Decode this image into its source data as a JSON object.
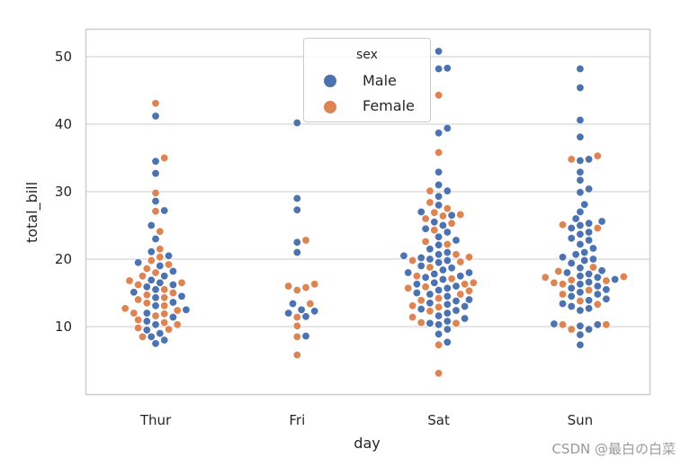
{
  "chart_data": {
    "type": "scatter",
    "subtype": "swarm",
    "categories": [
      "Thur",
      "Fri",
      "Sat",
      "Sun"
    ],
    "xlabel": "day",
    "ylabel": "total_bill",
    "ylim": [
      0,
      54
    ],
    "yticks": [
      10,
      20,
      30,
      40,
      50
    ],
    "grid": true,
    "legend": {
      "title": "sex",
      "placement": "top-center",
      "entries": [
        {
          "name": "Male",
          "color": "#4c72b0"
        },
        {
          "name": "Female",
          "color": "#dd8452"
        }
      ]
    },
    "series": [
      {
        "name": "Male",
        "color": "#4c72b0",
        "values": {
          "Thur": [
            41.2,
            34.5,
            32.7,
            28.6,
            27.2,
            25.0,
            23.0,
            21.1,
            20.5,
            19.5,
            19.0,
            18.2,
            17.5,
            16.9,
            16.5,
            16.2,
            15.9,
            15.5,
            15.1,
            14.5,
            14.3,
            13.6,
            13.1,
            12.5,
            12.0,
            11.4,
            10.8,
            10.3,
            9.5,
            9.0,
            8.5,
            8.0,
            7.5
          ],
          "Fri": [
            40.2,
            29.0,
            27.3,
            22.5,
            21.0,
            13.4,
            12.5,
            12.3,
            12.0,
            11.5,
            8.6
          ],
          "Sat": [
            50.8,
            48.3,
            48.2,
            39.4,
            38.7,
            32.9,
            31.0,
            30.1,
            29.3,
            28.0,
            27.0,
            26.5,
            25.5,
            25.0,
            24.5,
            24.0,
            23.3,
            22.8,
            22.1,
            21.5,
            21.0,
            20.7,
            20.5,
            20.2,
            20.0,
            19.8,
            19.5,
            19.0,
            18.7,
            18.4,
            18.0,
            18.0,
            17.8,
            17.5,
            17.3,
            17.0,
            16.5,
            16.3,
            16.0,
            15.7,
            15.4,
            15.0,
            14.8,
            14.5,
            14.0,
            13.8,
            13.5,
            13.3,
            13.0,
            12.6,
            12.4,
            12.0,
            11.6,
            11.2,
            10.8,
            10.5,
            10.3,
            9.6,
            8.9,
            7.7
          ],
          "Sun": [
            48.2,
            45.4,
            40.6,
            38.1,
            34.8,
            34.6,
            32.9,
            31.7,
            30.4,
            29.9,
            28.1,
            27.0,
            26.0,
            25.6,
            25.3,
            25.0,
            24.6,
            24.0,
            23.7,
            23.1,
            22.8,
            22.2,
            21.6,
            21.0,
            20.7,
            20.3,
            20.0,
            19.8,
            19.4,
            18.7,
            18.3,
            18.0,
            17.8,
            17.5,
            17.3,
            17.0,
            16.6,
            16.3,
            16.0,
            15.7,
            15.5,
            15.1,
            14.8,
            14.5,
            14.1,
            13.9,
            13.4,
            13.0,
            12.7,
            12.4,
            10.4,
            10.3,
            10.1,
            9.6,
            8.8,
            7.3
          ]
        }
      },
      {
        "name": "Female",
        "color": "#dd8452",
        "values": {
          "Thur": [
            43.1,
            35.0,
            29.8,
            27.1,
            24.1,
            21.5,
            20.3,
            19.8,
            19.2,
            18.6,
            18.0,
            17.5,
            16.8,
            16.5,
            16.2,
            15.5,
            15.0,
            14.7,
            14.3,
            14.0,
            13.5,
            13.1,
            12.7,
            12.4,
            12.0,
            11.9,
            11.6,
            11.0,
            10.6,
            10.3,
            9.8,
            9.6,
            8.5
          ],
          "Fri": [
            22.8,
            16.3,
            16.0,
            15.8,
            15.4,
            13.4,
            11.4,
            10.1,
            8.5,
            5.8
          ],
          "Sat": [
            44.3,
            35.8,
            30.1,
            28.4,
            27.5,
            26.9,
            26.6,
            26.4,
            26.0,
            25.3,
            24.3,
            22.6,
            22.2,
            20.7,
            20.3,
            19.8,
            19.6,
            18.8,
            17.5,
            17.1,
            16.5,
            16.3,
            15.9,
            15.7,
            15.3,
            14.8,
            14.2,
            13.9,
            13.1,
            12.9,
            12.3,
            11.4,
            10.6,
            10.5,
            7.3,
            3.1
          ],
          "Sun": [
            35.3,
            34.8,
            25.1,
            24.6,
            18.8,
            18.2,
            17.4,
            17.3,
            16.9,
            16.8,
            16.5,
            16.3,
            15.4,
            14.8,
            13.8,
            13.3,
            10.3,
            10.3,
            9.6
          ]
        }
      }
    ]
  },
  "watermark": "CSDN @最白の白菜"
}
